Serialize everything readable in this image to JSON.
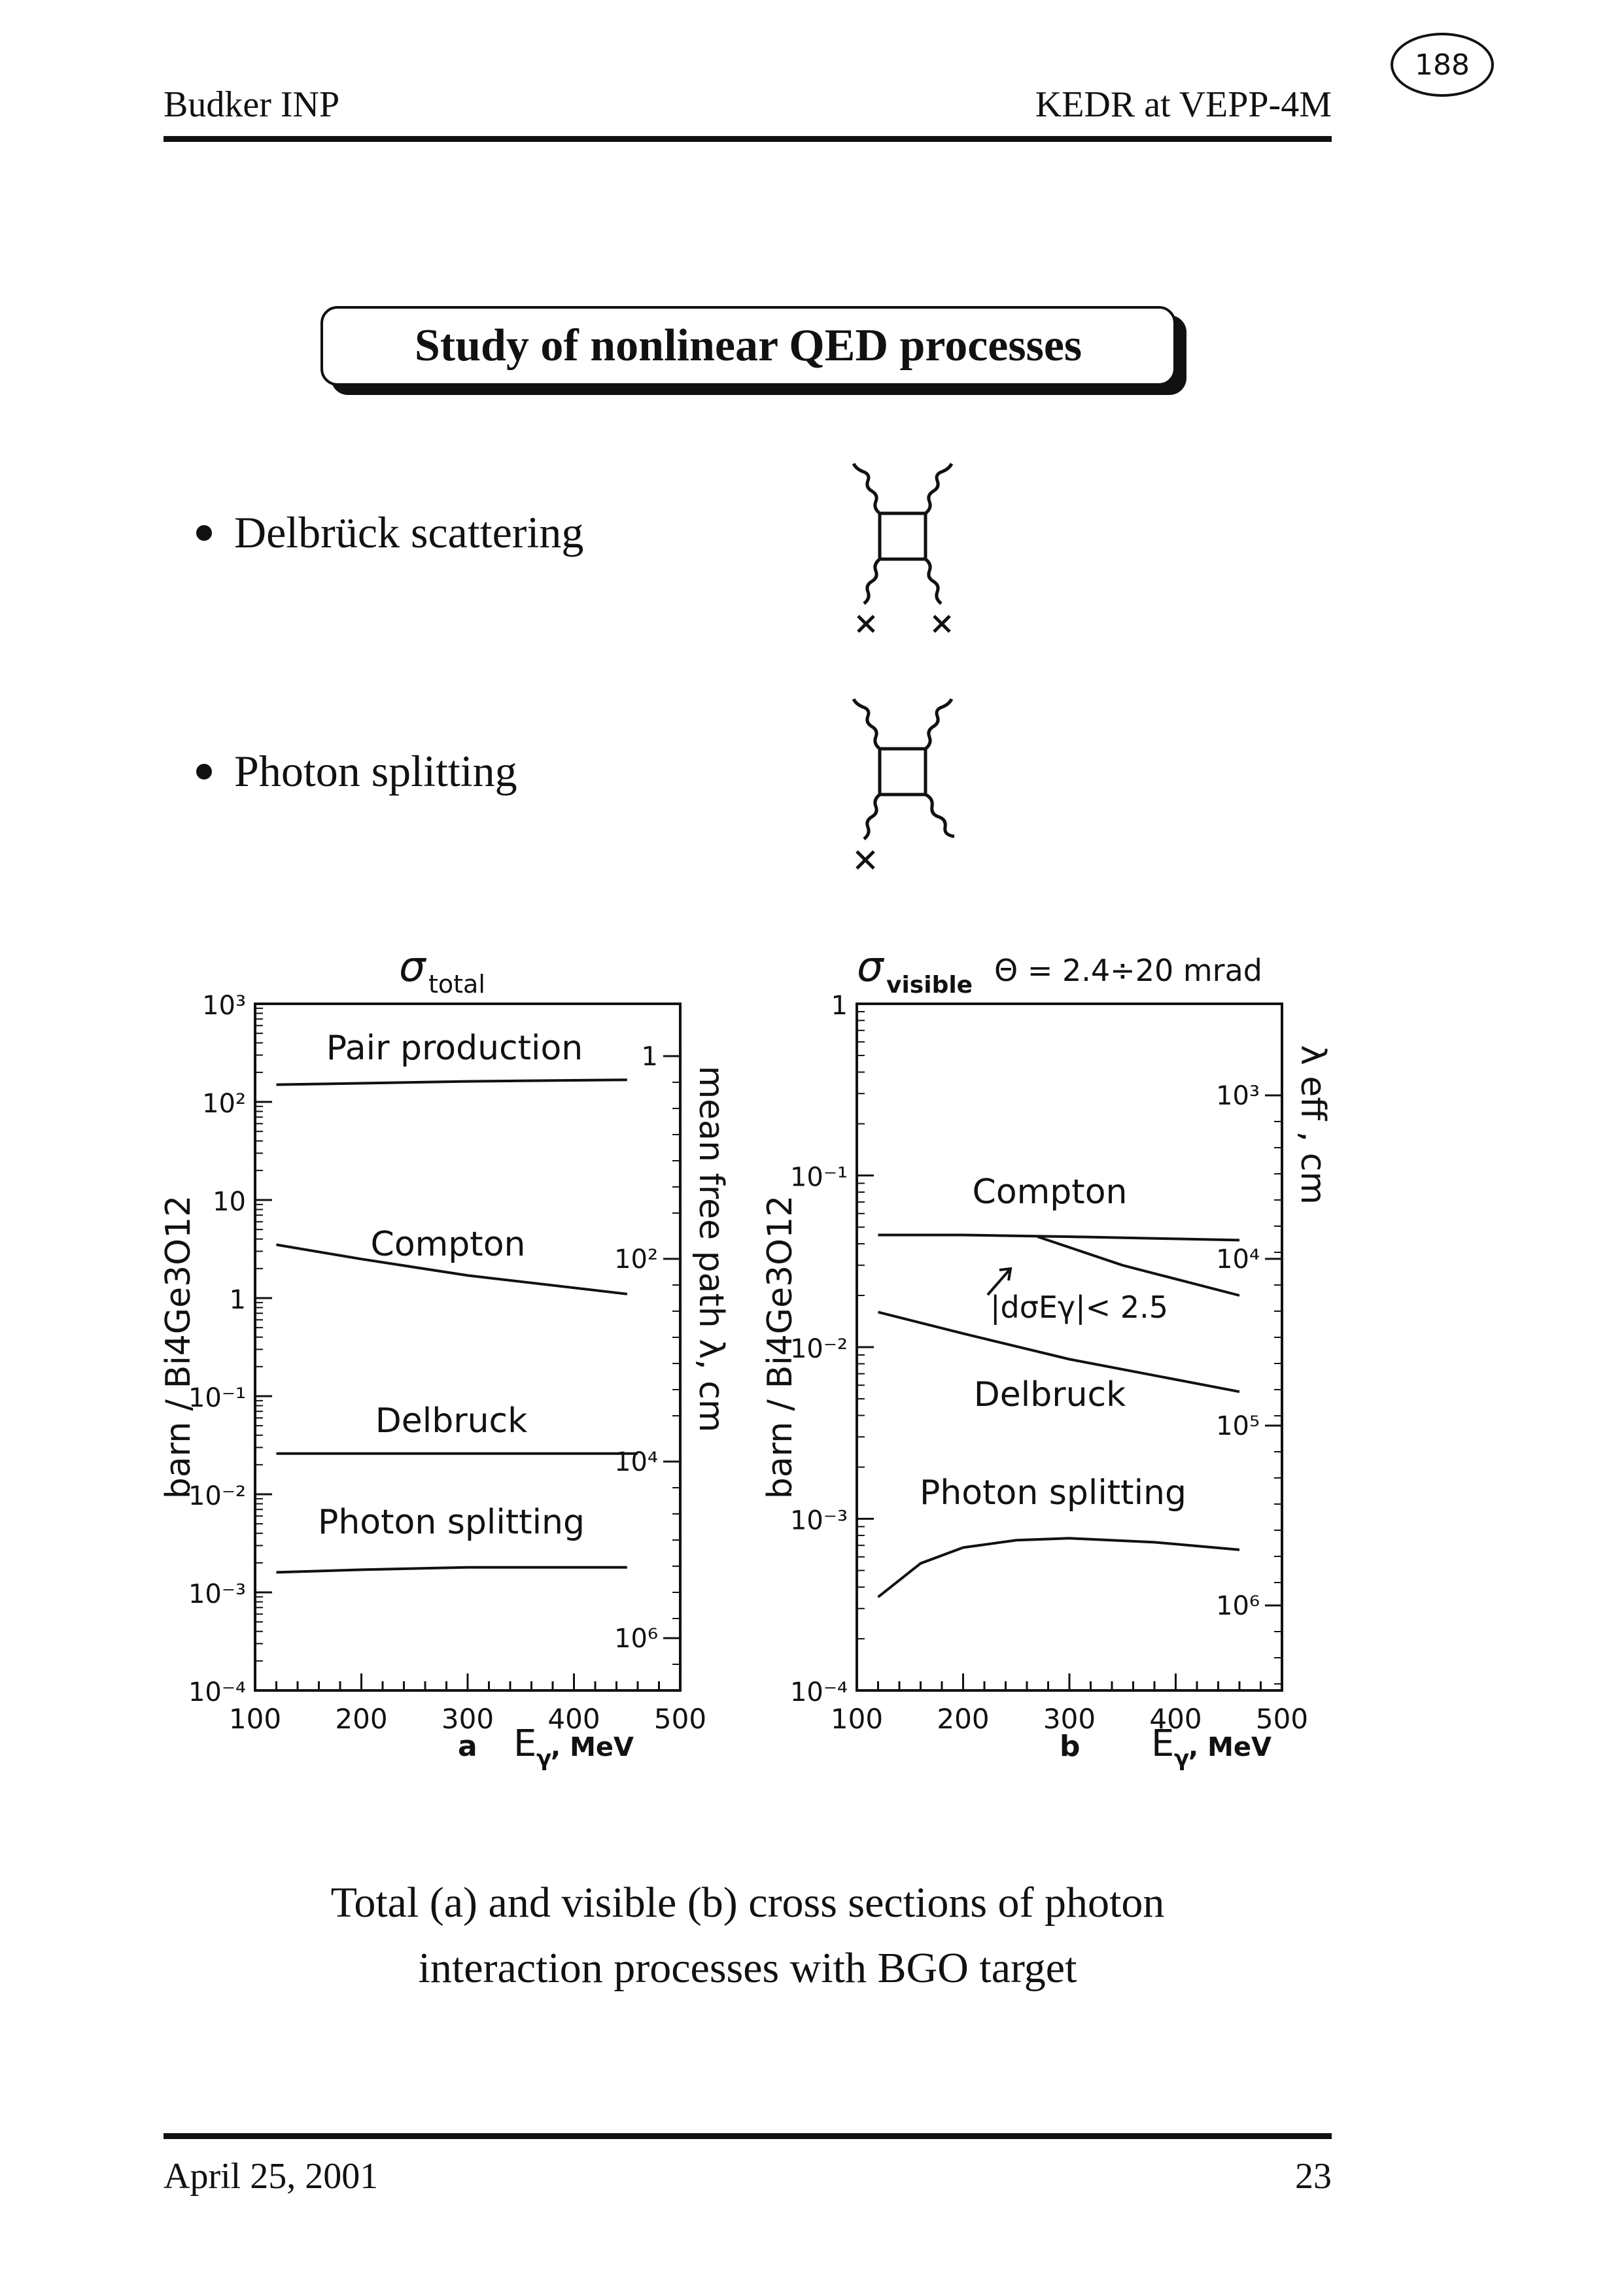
{
  "header": {
    "left": "Budker INP",
    "right": "KEDR at VEPP-4M",
    "stamp": "188"
  },
  "title": "Study of nonlinear QED processes",
  "bullets": [
    {
      "label": "Delbrück scattering",
      "diagram": "box-diagram-two-crosses"
    },
    {
      "label": "Photon splitting",
      "diagram": "box-diagram-one-cross"
    }
  ],
  "chart_data": [
    {
      "type": "line",
      "title": "σ total",
      "title_main": "σ",
      "title_sub": "total",
      "panel_label": "a",
      "xlabel": "E_γ, MeV",
      "xlabel_main": "E",
      "xlabel_sub": "γ",
      "xlabel_rest": ", MeV",
      "ylabel": "barn / Bi4Ge3O12",
      "ylabel_right": "mean free path λ, cm",
      "x_ticks": [
        "100",
        "200",
        "300",
        "400",
        "500"
      ],
      "y_ticks": [
        "10³",
        "10²",
        "10",
        "1",
        "10⁻¹",
        "10⁻²",
        "10⁻³",
        "10⁻⁴"
      ],
      "y_right_ticks": [
        "1",
        "10²",
        "10⁴",
        "10⁶"
      ],
      "xlim": [
        100,
        500
      ],
      "ylim": [
        0.0001,
        1000
      ],
      "yscale": "log",
      "series": [
        {
          "name": "Pair production",
          "x": [
            120,
            200,
            300,
            450
          ],
          "values": [
            150,
            155,
            162,
            168
          ]
        },
        {
          "name": "Compton",
          "x": [
            120,
            200,
            300,
            450
          ],
          "values": [
            3.5,
            2.5,
            1.7,
            1.1
          ]
        },
        {
          "name": "Delbruck",
          "x": [
            120,
            200,
            300,
            460
          ],
          "values": [
            0.026,
            0.026,
            0.026,
            0.026
          ]
        },
        {
          "name": "Photon splitting",
          "x": [
            120,
            200,
            300,
            450
          ],
          "values": [
            0.0016,
            0.0017,
            0.0018,
            0.0018
          ]
        }
      ]
    },
    {
      "type": "line",
      "title": "σ visible Θ = 2.4÷20 mrad",
      "title_main": "σ",
      "title_sub": "visible",
      "title_rest": "Θ = 2.4÷20 mrad",
      "panel_label": "b",
      "xlabel": "E_γ, MeV",
      "xlabel_main": "E",
      "xlabel_sub": "γ",
      "xlabel_rest": ", MeV",
      "ylabel": "barn / Bi4Ge3O12",
      "ylabel_right": "λ eff , cm",
      "x_ticks": [
        "100",
        "200",
        "300",
        "400",
        "500"
      ],
      "y_ticks": [
        "1",
        "10⁻¹",
        "10⁻²",
        "10⁻³",
        "10⁻⁴"
      ],
      "y_right_ticks": [
        "10³",
        "10⁴",
        "10⁵",
        "10⁶"
      ],
      "xlim": [
        100,
        500
      ],
      "ylim": [
        0.0001,
        1
      ],
      "yscale": "log",
      "annotation": "|dσEγ|< 2.5",
      "series": [
        {
          "name": "Compton",
          "x": [
            120,
            200,
            300,
            460
          ],
          "values": [
            0.045,
            0.045,
            0.044,
            0.042
          ]
        },
        {
          "name": "|dσEγ|< 2.5",
          "x": [
            270,
            350,
            460
          ],
          "values": [
            0.044,
            0.03,
            0.02
          ]
        },
        {
          "name": "Delbruck",
          "x": [
            120,
            200,
            300,
            460
          ],
          "values": [
            0.016,
            0.012,
            0.0085,
            0.0055
          ]
        },
        {
          "name": "Photon splitting",
          "x": [
            120,
            160,
            200,
            250,
            300,
            380,
            460
          ],
          "values": [
            0.00035,
            0.00055,
            0.00068,
            0.00075,
            0.00077,
            0.00073,
            0.00066
          ]
        }
      ]
    }
  ],
  "caption": {
    "line1": "Total (a) and visible (b) cross sections of photon",
    "line2": "interaction processes with BGO target"
  },
  "footer": {
    "date": "April 25, 2001",
    "page": "23"
  }
}
